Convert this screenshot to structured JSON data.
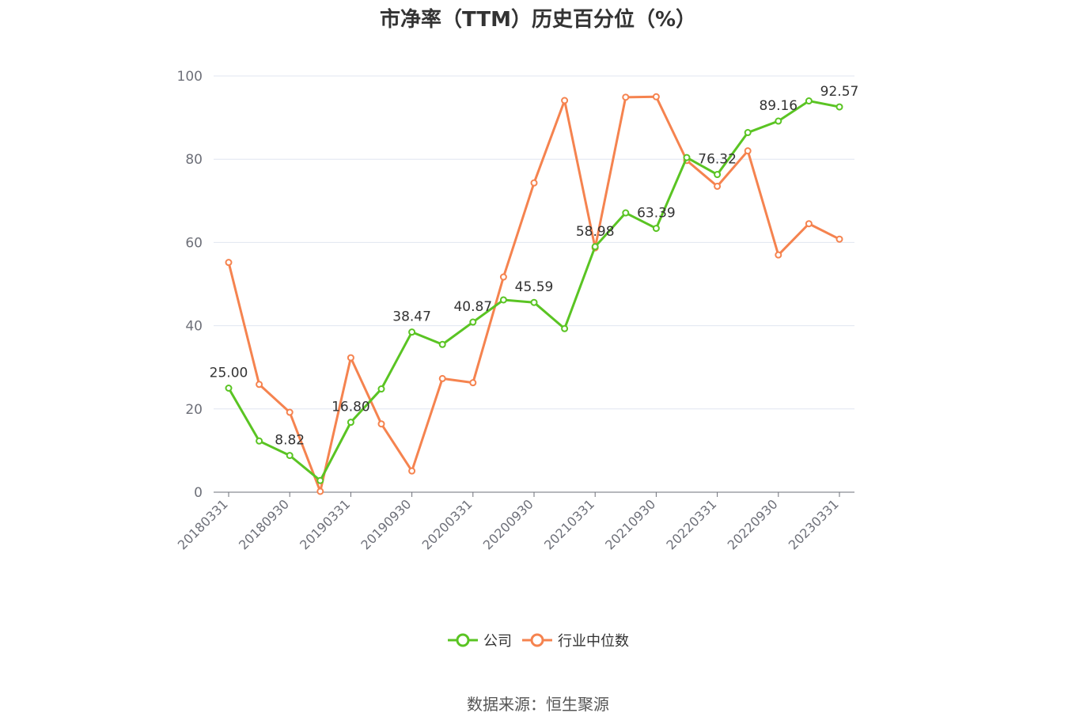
{
  "chart_data": {
    "type": "line",
    "title": "市净率（TTM）历史百分位（%）",
    "source": "数据来源：恒生聚源",
    "ylim": [
      0,
      100
    ],
    "yticks": [
      0,
      20,
      40,
      60,
      80,
      100
    ],
    "x": [
      "20180331",
      "20180630",
      "20180930",
      "20181231",
      "20190331",
      "20190630",
      "20190930",
      "20191231",
      "20200331",
      "20200630",
      "20200930",
      "20201231",
      "20210331",
      "20210630",
      "20210930",
      "20211231",
      "20220331",
      "20220630",
      "20220930",
      "20221231",
      "20230331"
    ],
    "xtick_labels": [
      "20180331",
      "20180930",
      "20190331",
      "20190930",
      "20200331",
      "20200930",
      "20210331",
      "20210930",
      "20220331",
      "20220930",
      "20230331"
    ],
    "grid": true,
    "legend_position": "bottom",
    "series": [
      {
        "name": "公司",
        "color": "#5ac423",
        "values": [
          25.0,
          12.3,
          8.82,
          2.8,
          16.8,
          24.8,
          38.47,
          35.5,
          40.87,
          46.2,
          45.59,
          39.3,
          58.98,
          67.1,
          63.39,
          80.4,
          76.32,
          86.4,
          89.16,
          94.0,
          92.57
        ],
        "labels": [
          "25.00",
          "",
          "8.82",
          "",
          "16.80",
          "",
          "38.47",
          "",
          "40.87",
          "",
          "45.59",
          "",
          "58.98",
          "",
          "63.39",
          "",
          "76.32",
          "",
          "89.16",
          "",
          "92.57"
        ]
      },
      {
        "name": "行业中位数",
        "color": "#f5834f",
        "values": [
          55.2,
          25.9,
          19.2,
          0.2,
          32.3,
          16.4,
          5.1,
          27.3,
          26.3,
          51.7,
          74.3,
          94.1,
          58.7,
          94.9,
          95.0,
          79.7,
          73.5,
          82.0,
          57.0,
          64.5,
          60.8
        ],
        "labels": []
      }
    ]
  }
}
